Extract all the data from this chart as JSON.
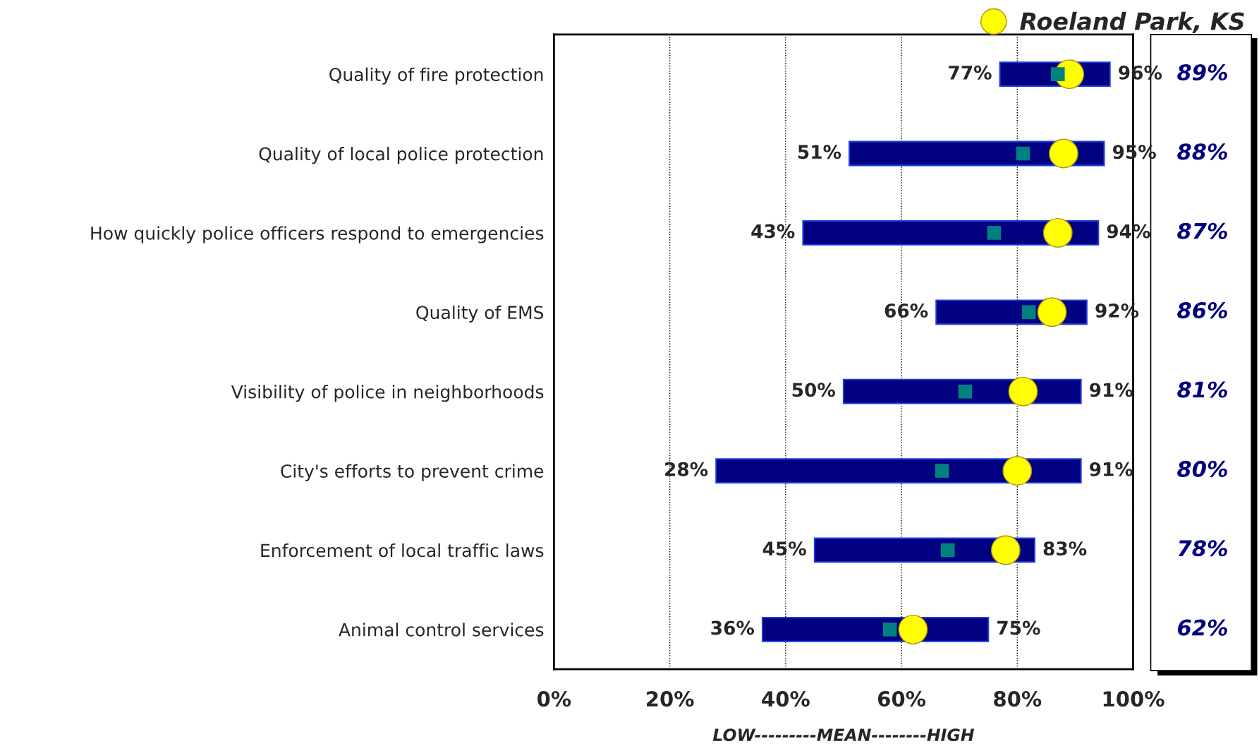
{
  "chart_data": {
    "type": "bar",
    "orientation": "horizontal",
    "categories": [
      "Quality of fire protection",
      "Quality of local police protection",
      "How quickly police officers respond to emergencies",
      "Quality of EMS",
      "Visibility of police in neighborhoods",
      "City's efforts to prevent crime",
      "Enforcement of local traffic laws",
      "Animal control services"
    ],
    "series": [
      {
        "color": "#000080",
        "base": [
          77,
          51,
          43,
          66,
          50,
          28,
          45,
          36
        ],
        "values": [
          19,
          44,
          51,
          26,
          41,
          63,
          38,
          39
        ]
      },
      {
        "type": "scatter",
        "marker": "square",
        "color": "#008080",
        "values": [
          87,
          81,
          76,
          82,
          71,
          67,
          68,
          58
        ]
      },
      {
        "type": "scatter",
        "marker": "circle",
        "name": "Roeland Park, KS",
        "color": "#ffff00",
        "values": [
          89,
          88,
          87,
          86,
          81,
          80,
          78,
          62
        ],
        "value_labels": [
          "89%",
          "88%",
          "87%",
          "86%",
          "81%",
          "80%",
          "78%",
          "62%"
        ]
      }
    ],
    "xlim": [
      0,
      100
    ],
    "xticks": [
      {
        "value": 0,
        "label": "0%"
      },
      {
        "value": 20,
        "label": "20%"
      },
      {
        "value": 40,
        "label": "40%"
      },
      {
        "value": 60,
        "label": "60%"
      },
      {
        "value": 80,
        "label": "80%"
      },
      {
        "value": 100,
        "label": "100%"
      }
    ],
    "xlabel": "LOW---------MEAN--------HIGH",
    "grid": "x",
    "line_style": "dotted",
    "legend": "top right",
    "annotations": [
      {
        "text": "77%",
        "x": 77,
        "y": "Quality of fire protection"
      },
      {
        "text": "96%",
        "x": 96,
        "y": "Quality of fire protection"
      },
      {
        "text": "51%",
        "x": 51,
        "y": "Quality of local police protection"
      },
      {
        "text": "95%",
        "x": 95,
        "y": "Quality of local police protection"
      },
      {
        "text": "43%",
        "x": 43,
        "y": "How quickly police officers respond to emergencies"
      },
      {
        "text": "94%",
        "x": 94,
        "y": "How quickly police officers respond to emergencies"
      },
      {
        "text": "66%",
        "x": 66,
        "y": "Quality of EMS"
      },
      {
        "text": "92%",
        "x": 92,
        "y": "Quality of EMS"
      },
      {
        "text": "50%",
        "x": 50,
        "y": "Visibility of police in neighborhoods"
      },
      {
        "text": "91%",
        "x": 91,
        "y": "Visibility of police in neighborhoods"
      },
      {
        "text": "28%",
        "x": 28,
        "y": "City's efforts to prevent crime"
      },
      {
        "text": "91%",
        "x": 91,
        "y": "City's efforts to prevent crime"
      },
      {
        "text": "45%",
        "x": 45,
        "y": "Enforcement of local traffic laws"
      },
      {
        "text": "83%",
        "x": 83,
        "y": "Enforcement of local traffic laws"
      },
      {
        "text": "36%",
        "x": 36,
        "y": "Animal control services"
      },
      {
        "text": "75%",
        "x": 75,
        "y": "Animal control services"
      }
    ]
  }
}
